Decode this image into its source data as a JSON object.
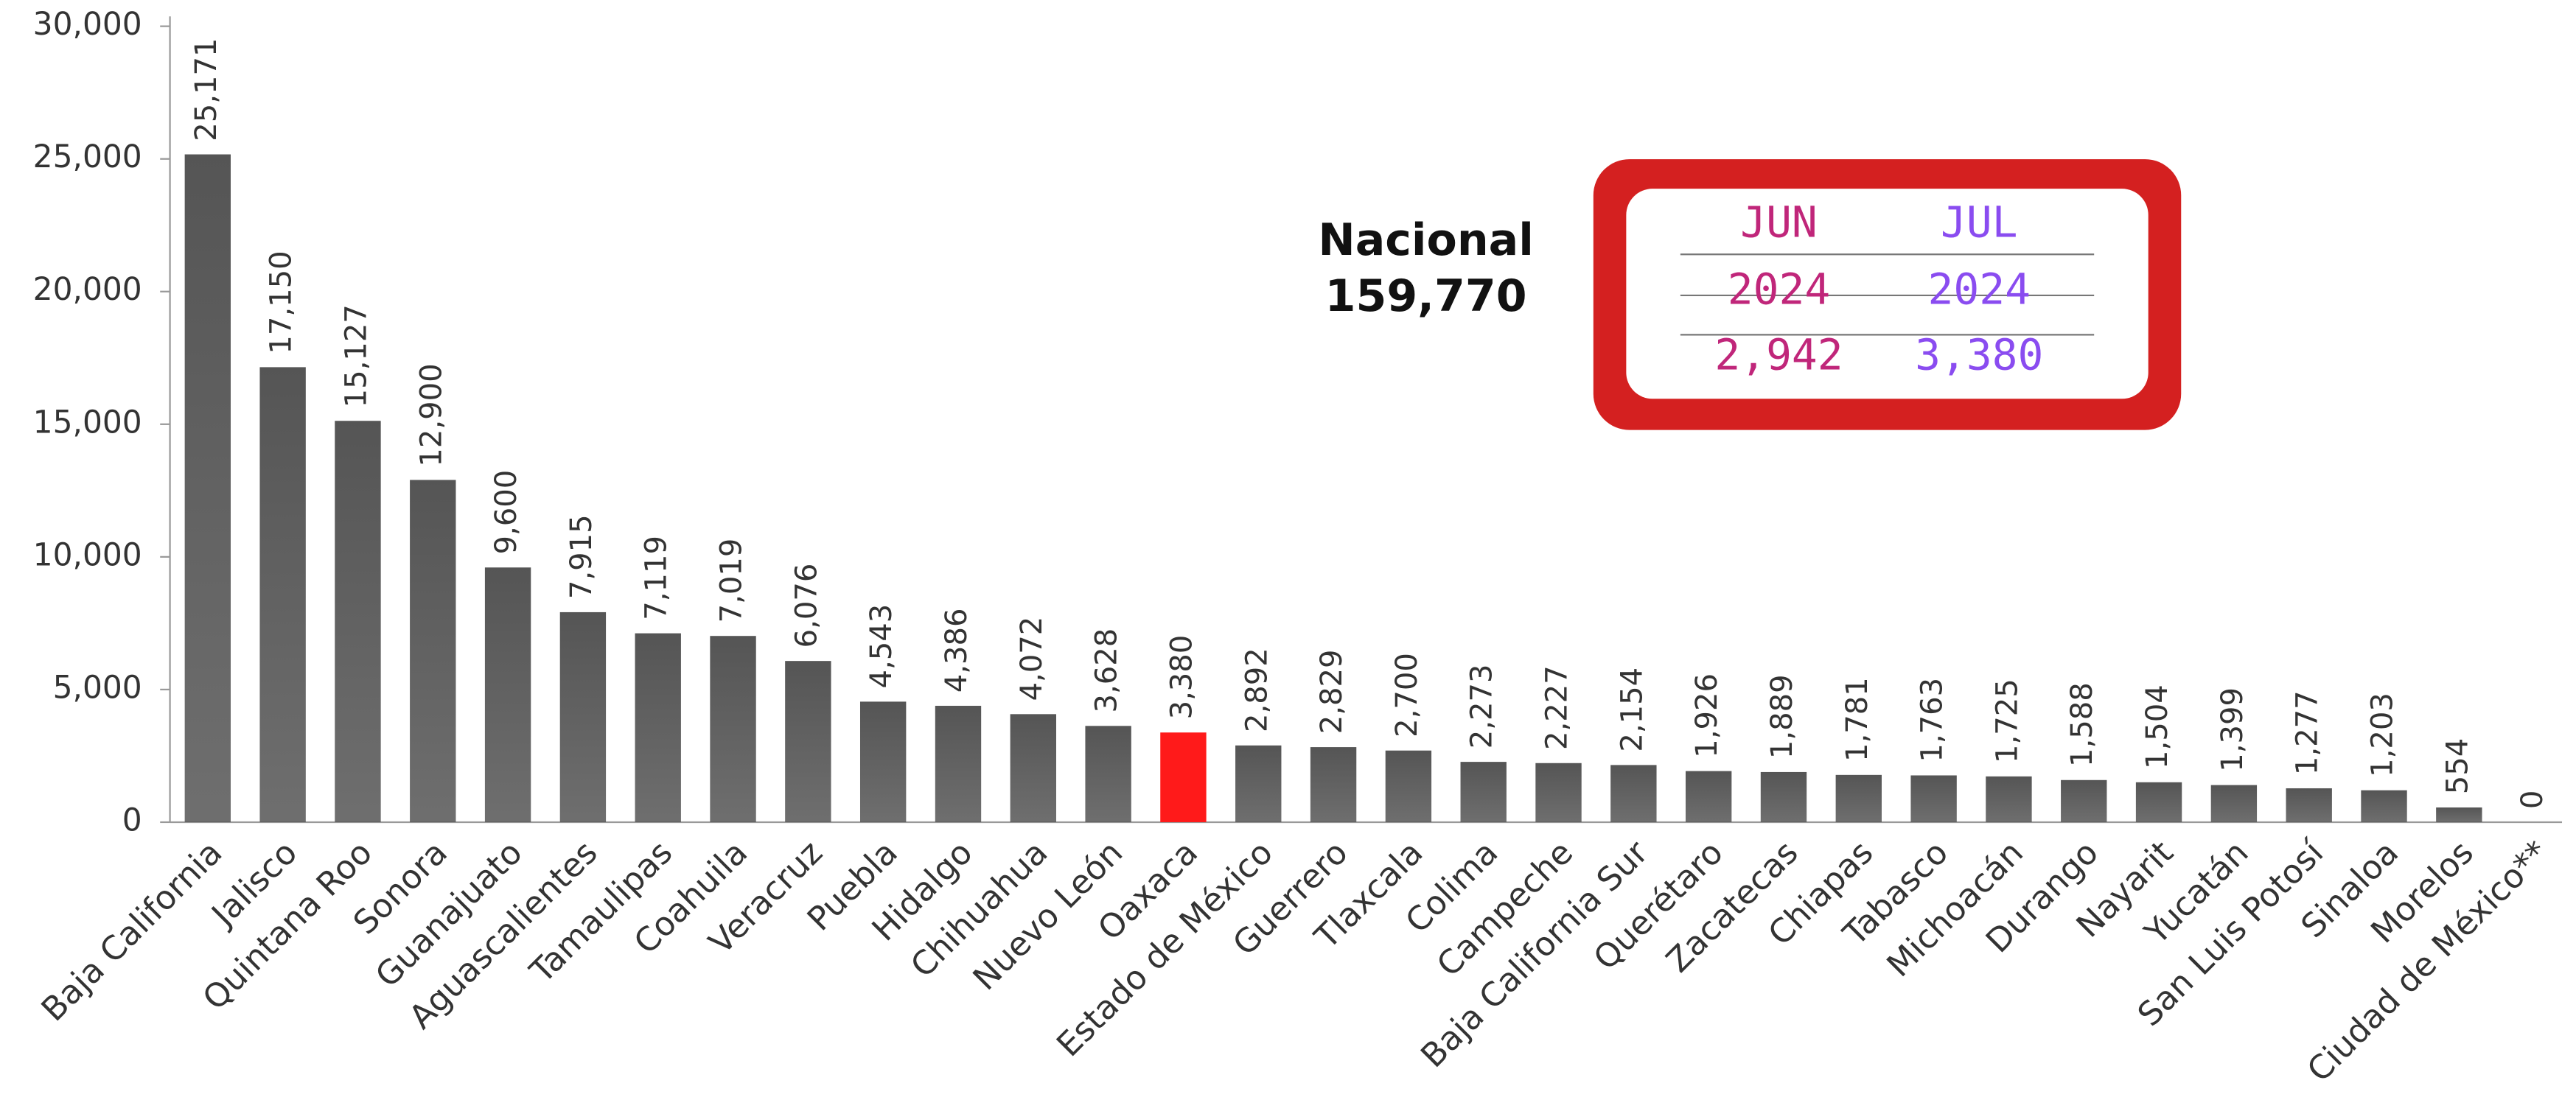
{
  "chart_data": {
    "type": "bar",
    "categories": [
      "Baja California",
      "Jalisco",
      "Quintana Roo",
      "Sonora",
      "Guanajuato",
      "Aguascalientes",
      "Tamaulipas",
      "Coahuila",
      "Veracruz",
      "Puebla",
      "Hidalgo",
      "Chihuahua",
      "Nuevo León",
      "Oaxaca",
      "Estado de México",
      "Guerrero",
      "Tlaxcala",
      "Colima",
      "Campeche",
      "Baja California Sur",
      "Querétaro",
      "Zacatecas",
      "Chiapas",
      "Tabasco",
      "Michoacán",
      "Durango",
      "Nayarit",
      "Yucatán",
      "San Luis Potosí",
      "Sinaloa",
      "Morelos",
      "Ciudad de México**"
    ],
    "values": [
      25171,
      17150,
      15127,
      12900,
      9600,
      7915,
      7119,
      7019,
      6076,
      4543,
      4386,
      4072,
      3628,
      3380,
      2892,
      2829,
      2700,
      2273,
      2227,
      2154,
      1926,
      1889,
      1781,
      1763,
      1725,
      1588,
      1504,
      1399,
      1277,
      1203,
      554,
      0
    ],
    "value_labels": [
      "25,171",
      "17,150",
      "15,127",
      "12,900",
      "9,600",
      "7,915",
      "7,119",
      "7,019",
      "6,076",
      "4,543",
      "4,386",
      "4,072",
      "3,628",
      "3,380",
      "2,892",
      "2,829",
      "2,700",
      "2,273",
      "2,227",
      "2,154",
      "1,926",
      "1,889",
      "1,781",
      "1,763",
      "1,725",
      "1,588",
      "1,504",
      "1,399",
      "1,277",
      "1,203",
      "554",
      "0"
    ],
    "color": "#555555",
    "highlight": {
      "category": "Oaxaca",
      "color": "#ff1a1a"
    },
    "ylim": [
      0,
      30000
    ],
    "yticks": [
      0,
      {
        "value": 5000,
        "label": "5,000"
      },
      {
        "value": 10000,
        "label": "10,000"
      },
      {
        "value": 15000,
        "label": "15,000"
      },
      {
        "value": 20000,
        "label": "20,000"
      },
      {
        "value": 25000,
        "label": "25,000"
      },
      {
        "value": 30000,
        "label": "30,000"
      }
    ],
    "annotation": {
      "lines": [
        "Nacional",
        "159,770"
      ]
    },
    "inset": {
      "columns": [
        {
          "month": "JUN",
          "year": "2024",
          "value": "2,942",
          "color": "#c0267a"
        },
        {
          "month": "JUL",
          "year": "2024",
          "value": "3,380",
          "color": "#8a4cf0"
        }
      ],
      "border_color": "#d42020"
    }
  }
}
